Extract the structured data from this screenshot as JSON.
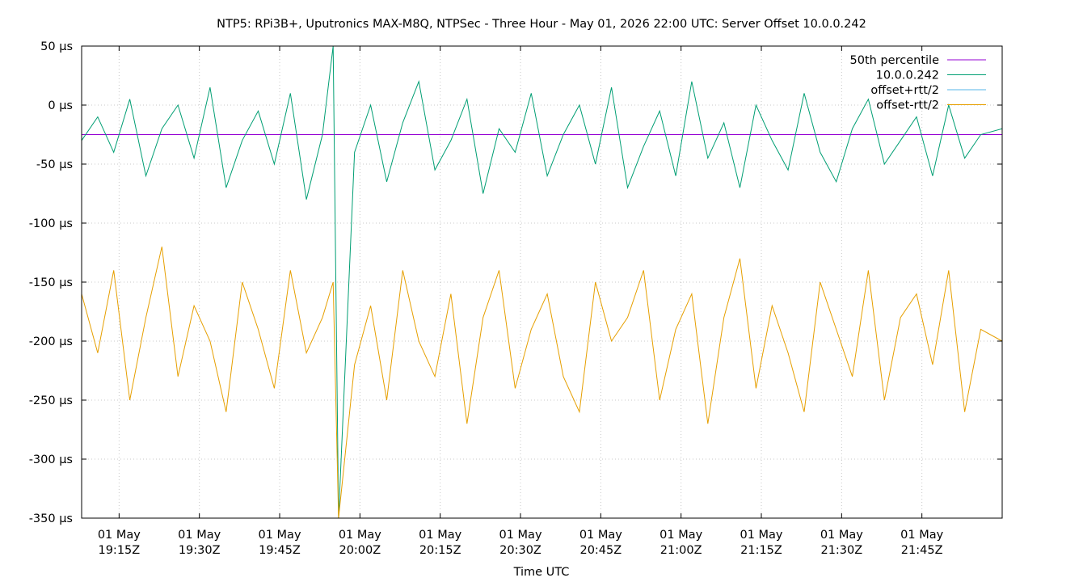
{
  "chart_data": {
    "type": "line",
    "title": "NTP5: RPi3B+, Uputronics MAX-M8Q, NTPSec - Three Hour - May 01, 2026 22:00 UTC: Server Offset 10.0.0.242",
    "xlabel": "Time UTC",
    "ylabel": "",
    "ylim": [
      -350,
      50
    ],
    "xlim": [
      "2026-05-01T19:08Z",
      "2026-05-01T22:00Z"
    ],
    "yticks": [
      50,
      0,
      -50,
      -100,
      -150,
      -200,
      -250,
      -300,
      -350
    ],
    "ytick_labels": [
      "50 µs",
      "0 µs",
      "-50 µs",
      "-100 µs",
      "-150 µs",
      "-200 µs",
      "-250 µs",
      "-300 µs",
      "-350 µs"
    ],
    "xticks": [
      "19:15",
      "19:30",
      "19:45",
      "20:00",
      "20:15",
      "20:30",
      "20:45",
      "21:00",
      "21:15",
      "21:30",
      "21:45"
    ],
    "xtick_labels": [
      [
        "01 May",
        "19:15Z"
      ],
      [
        "01 May",
        "19:30Z"
      ],
      [
        "01 May",
        "19:45Z"
      ],
      [
        "01 May",
        "20:00Z"
      ],
      [
        "01 May",
        "20:15Z"
      ],
      [
        "01 May",
        "20:30Z"
      ],
      [
        "01 May",
        "20:45Z"
      ],
      [
        "01 May",
        "21:00Z"
      ],
      [
        "01 May",
        "21:15Z"
      ],
      [
        "01 May",
        "21:30Z"
      ],
      [
        "01 May",
        "21:45Z"
      ]
    ],
    "grid": true,
    "legend_position": "top-right",
    "series": [
      {
        "name": "50th percentile",
        "color": "#9400d3",
        "values": [
          -25,
          -25
        ]
      },
      {
        "name": "10.0.0.242",
        "color": "#009e73",
        "x": [
          "19:08",
          "19:11",
          "19:14",
          "19:17",
          "19:20",
          "19:23",
          "19:26",
          "19:29",
          "19:32",
          "19:35",
          "19:38",
          "19:41",
          "19:44",
          "19:47",
          "19:50",
          "19:53",
          "19:55",
          "19:56",
          "19:59",
          "20:02",
          "20:05",
          "20:08",
          "20:11",
          "20:14",
          "20:17",
          "20:20",
          "20:23",
          "20:26",
          "20:29",
          "20:32",
          "20:35",
          "20:38",
          "20:41",
          "20:44",
          "20:47",
          "20:50",
          "20:53",
          "20:56",
          "20:59",
          "21:02",
          "21:05",
          "21:08",
          "21:11",
          "21:14",
          "21:17",
          "21:20",
          "21:23",
          "21:26",
          "21:29",
          "21:32",
          "21:35",
          "21:38",
          "21:41",
          "21:44",
          "21:47",
          "21:50",
          "21:53",
          "21:56",
          "22:00"
        ],
        "values": [
          -30,
          -10,
          -40,
          5,
          -60,
          -20,
          0,
          -45,
          15,
          -70,
          -30,
          -5,
          -50,
          10,
          -80,
          -25,
          50,
          -350,
          -40,
          0,
          -65,
          -15,
          20,
          -55,
          -30,
          5,
          -75,
          -20,
          -40,
          10,
          -60,
          -25,
          0,
          -50,
          15,
          -70,
          -35,
          -5,
          -60,
          20,
          -45,
          -15,
          -70,
          0,
          -30,
          -55,
          10,
          -40,
          -65,
          -20,
          5,
          -50,
          -30,
          -10,
          -60,
          0,
          -45,
          -25,
          -20
        ]
      },
      {
        "name": "offset+rtt/2",
        "color": "#56b4e9",
        "values": []
      },
      {
        "name": "offset-rtt/2",
        "color": "#e69f00",
        "x": [
          "19:08",
          "19:11",
          "19:14",
          "19:17",
          "19:20",
          "19:23",
          "19:26",
          "19:29",
          "19:32",
          "19:35",
          "19:38",
          "19:41",
          "19:44",
          "19:47",
          "19:50",
          "19:53",
          "19:55",
          "19:56",
          "19:59",
          "20:02",
          "20:05",
          "20:08",
          "20:11",
          "20:14",
          "20:17",
          "20:20",
          "20:23",
          "20:26",
          "20:29",
          "20:32",
          "20:35",
          "20:38",
          "20:41",
          "20:44",
          "20:47",
          "20:50",
          "20:53",
          "20:56",
          "20:59",
          "21:02",
          "21:05",
          "21:08",
          "21:11",
          "21:14",
          "21:17",
          "21:20",
          "21:23",
          "21:26",
          "21:29",
          "21:32",
          "21:35",
          "21:38",
          "21:41",
          "21:44",
          "21:47",
          "21:50",
          "21:53",
          "21:56",
          "22:00"
        ],
        "values": [
          -160,
          -210,
          -140,
          -250,
          -180,
          -120,
          -230,
          -170,
          -200,
          -260,
          -150,
          -190,
          -240,
          -140,
          -210,
          -180,
          -150,
          -350,
          -220,
          -170,
          -250,
          -140,
          -200,
          -230,
          -160,
          -270,
          -180,
          -140,
          -240,
          -190,
          -160,
          -230,
          -260,
          -150,
          -200,
          -180,
          -140,
          -250,
          -190,
          -160,
          -270,
          -180,
          -130,
          -240,
          -170,
          -210,
          -260,
          -150,
          -190,
          -230,
          -140,
          -250,
          -180,
          -160,
          -220,
          -140,
          -260,
          -190,
          -200
        ]
      }
    ]
  }
}
